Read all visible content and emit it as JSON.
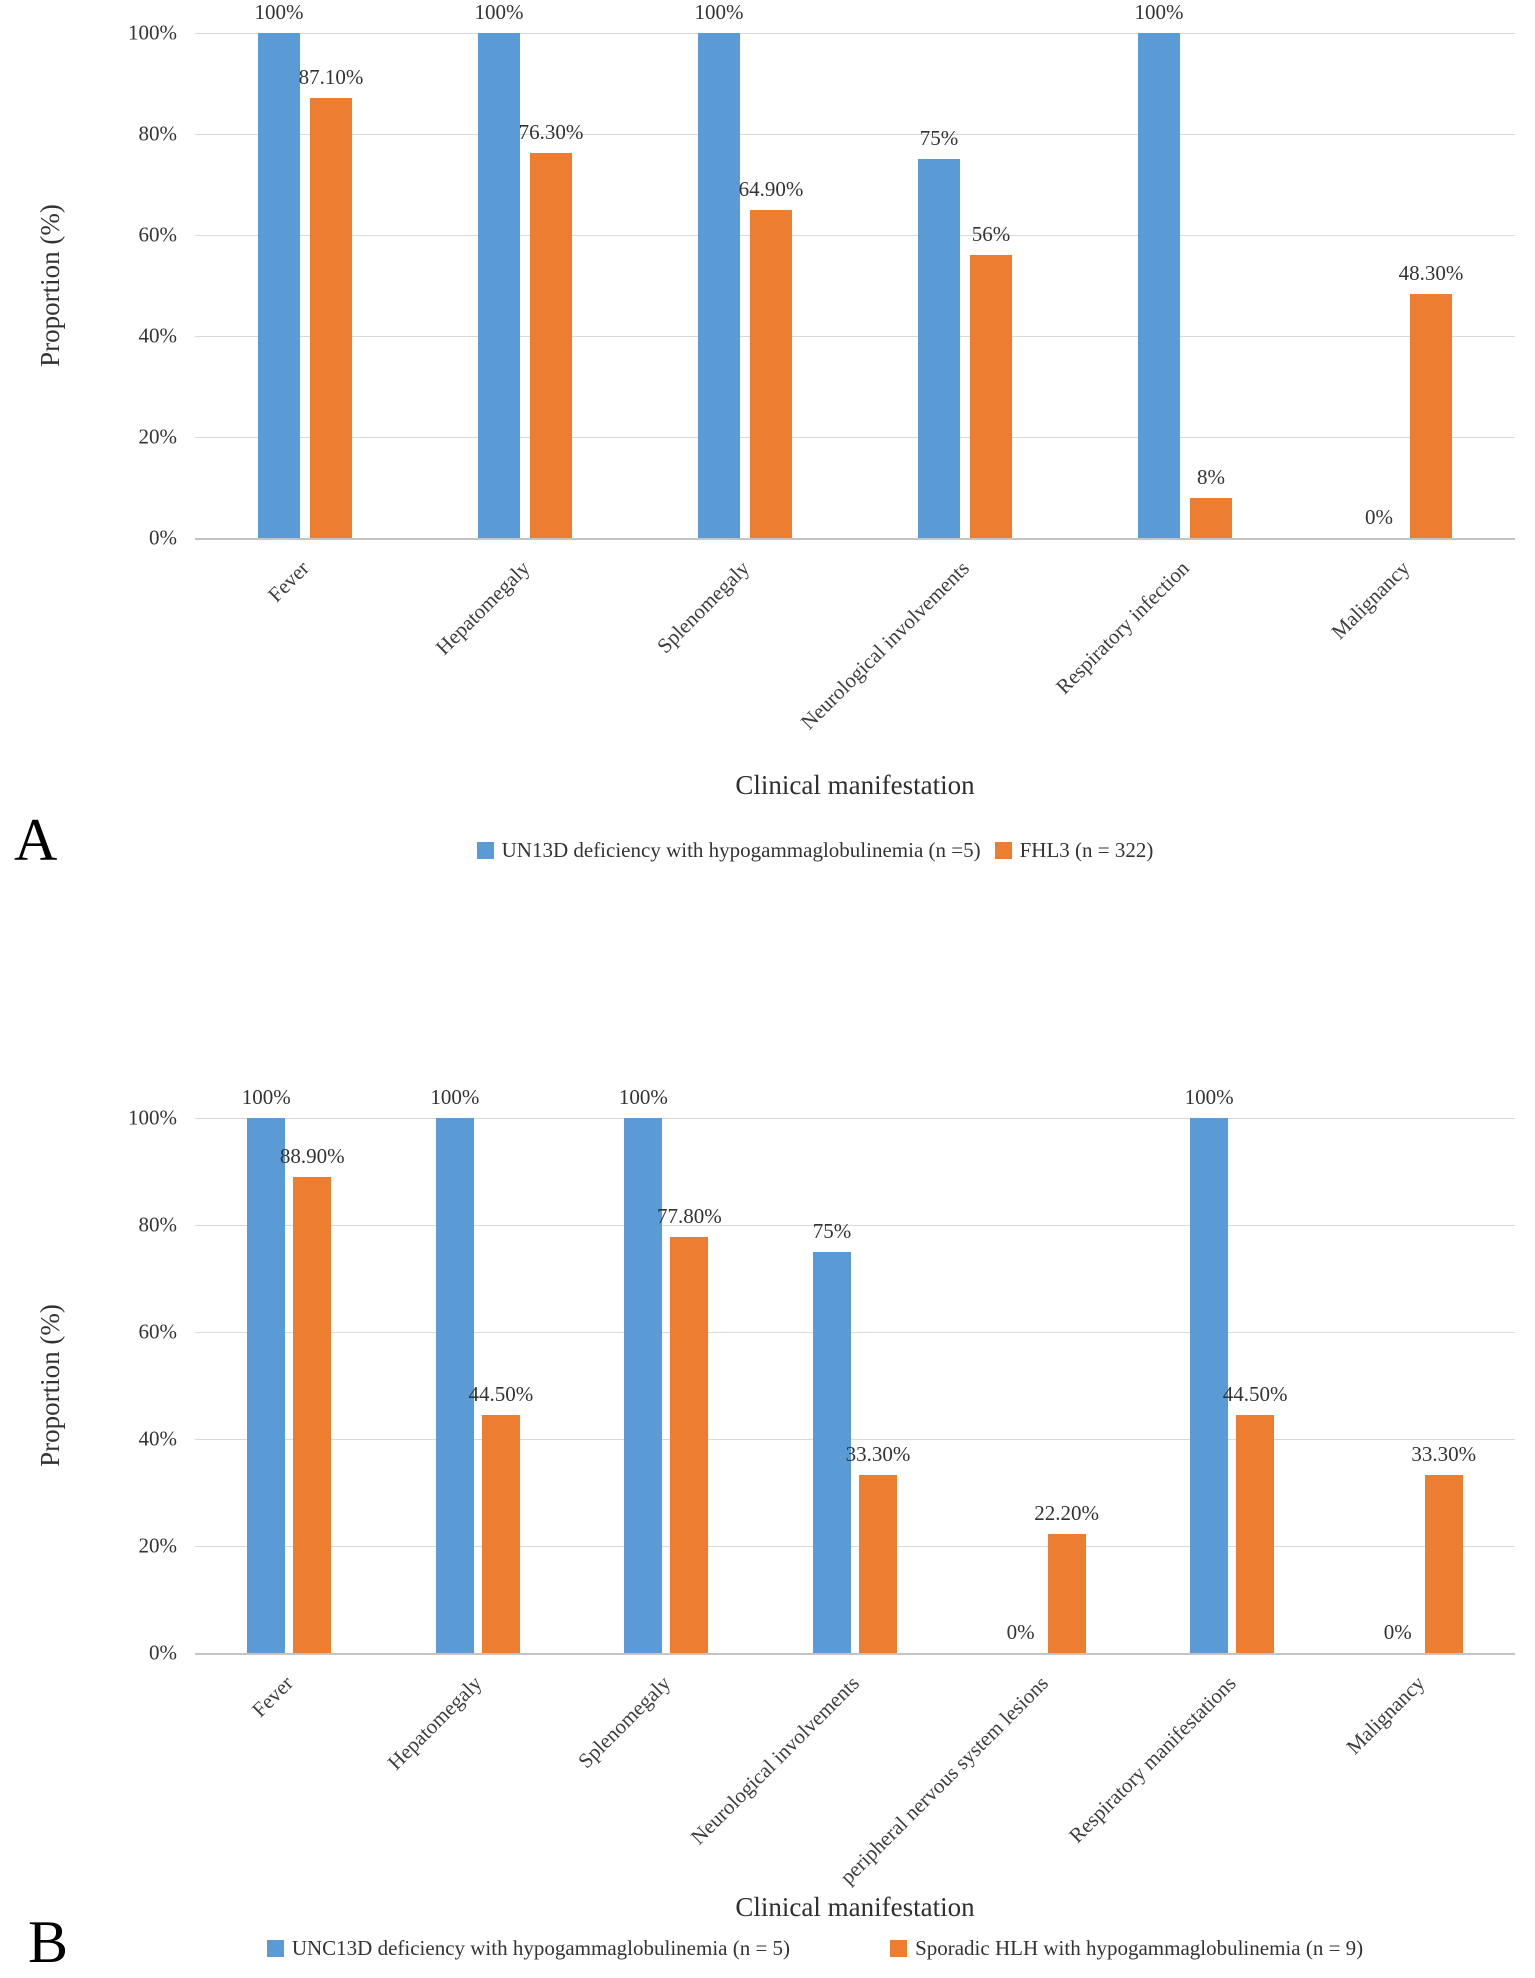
{
  "figure": {
    "panels": [
      {
        "letter": "A"
      },
      {
        "letter": "B"
      }
    ]
  },
  "colors": {
    "series1_blue": "#5B9BD5",
    "series2_orange": "#ED7D31",
    "gridline": "#d9d9d9"
  },
  "chart_data": [
    {
      "type": "bar",
      "panel": "A",
      "title": "",
      "xlabel": "Clinical manifestation",
      "ylabel": "Proportion (%)",
      "ylim": [
        0,
        100
      ],
      "yticks": [
        "100%",
        "80%",
        "60%",
        "40%",
        "20%",
        "0%"
      ],
      "grid": true,
      "legend_position": "bottom",
      "categories": [
        "Fever",
        "Hepatomegaly",
        "Splenomegaly",
        "Neurological involvements",
        "Respiratory infection",
        "Malignancy"
      ],
      "series": [
        {
          "name": "UN13D deficiency with hypogammaglobulinemia (n =5)",
          "color": "#5B9BD5",
          "values": [
            100,
            100,
            100,
            75,
            100,
            0
          ],
          "labels": [
            "100%",
            "100%",
            "100%",
            "75%",
            "100%",
            "0%"
          ]
        },
        {
          "name": "FHL3 (n = 322)",
          "color": "#ED7D31",
          "values": [
            87.1,
            76.3,
            64.9,
            56,
            8,
            48.3
          ],
          "labels": [
            "87.10%",
            "76.30%",
            "64.90%",
            "56%",
            "8%",
            "48.30%"
          ]
        }
      ]
    },
    {
      "type": "bar",
      "panel": "B",
      "title": "",
      "xlabel": "Clinical manifestation",
      "ylabel": "Proportion (%)",
      "ylim": [
        0,
        100
      ],
      "yticks": [
        "100%",
        "80%",
        "60%",
        "40%",
        "20%",
        "0%"
      ],
      "grid": true,
      "legend_position": "bottom",
      "categories": [
        "Fever",
        "Hepatomegaly",
        "Splenomegaly",
        "Neurological involvements",
        "peripheral nervous system lesions",
        "Respiratory manifestations",
        "Malignancy"
      ],
      "series": [
        {
          "name": "UNC13D deficiency with hypogammaglobulinemia (n = 5)",
          "color": "#5B9BD5",
          "values": [
            100,
            100,
            100,
            75,
            0,
            100,
            0
          ],
          "labels": [
            "100%",
            "100%",
            "100%",
            "75%",
            "0%",
            "100%",
            "0%"
          ]
        },
        {
          "name": "Sporadic HLH with hypogammaglobulinemia (n = 9)",
          "color": "#ED7D31",
          "values": [
            88.9,
            44.5,
            77.8,
            33.3,
            22.2,
            44.5,
            33.3
          ],
          "labels": [
            "88.90%",
            "44.50%",
            "77.80%",
            "33.30%",
            "22.20%",
            "44.50%",
            "33.30%"
          ]
        }
      ]
    }
  ]
}
